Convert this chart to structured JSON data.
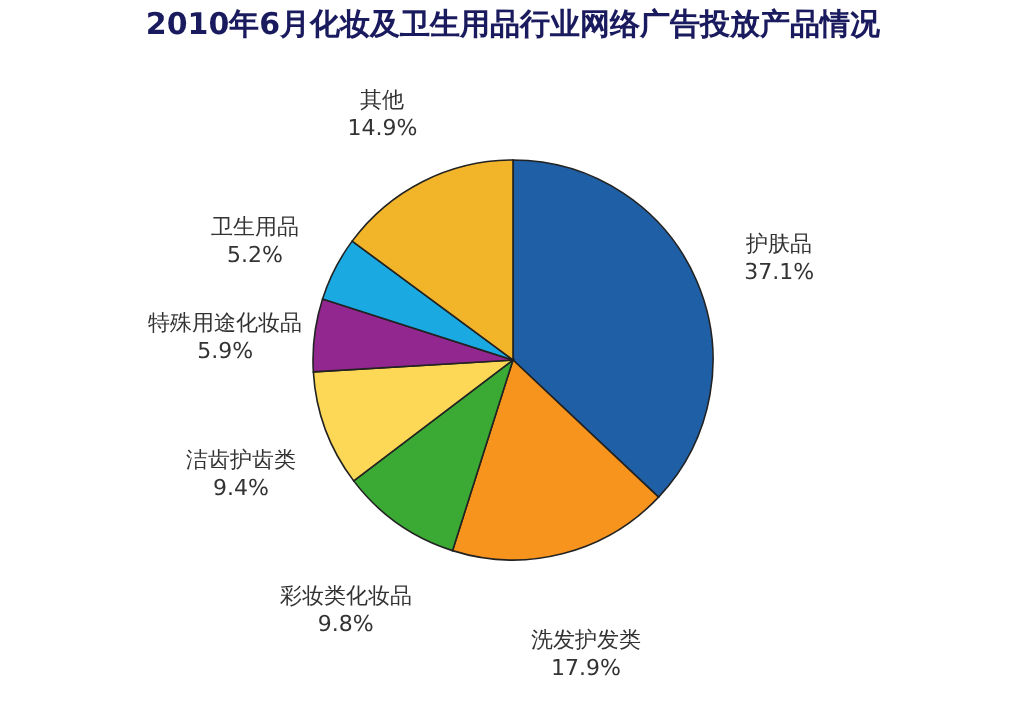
{
  "chart_data": {
    "type": "pie",
    "title": "2010年6月化妆及卫生用品行业网络广告投放产品情况",
    "categories": [
      "护肤品",
      "洗发护发类",
      "彩妆类化妆品",
      "洁齿护齿类",
      "特殊用途化妆品",
      "卫生用品",
      "其他"
    ],
    "values": [
      37.1,
      17.9,
      9.8,
      9.4,
      5.9,
      5.2,
      14.9
    ],
    "value_labels": [
      "37.1%",
      "17.9%",
      "9.8%",
      "9.4%",
      "5.9%",
      "5.2%",
      "14.9%"
    ],
    "colors": [
      "#1f5fa6",
      "#f7941d",
      "#3aaa35",
      "#fcd856",
      "#92278f",
      "#1ba9e1",
      "#f2b52a"
    ],
    "legend": false
  }
}
